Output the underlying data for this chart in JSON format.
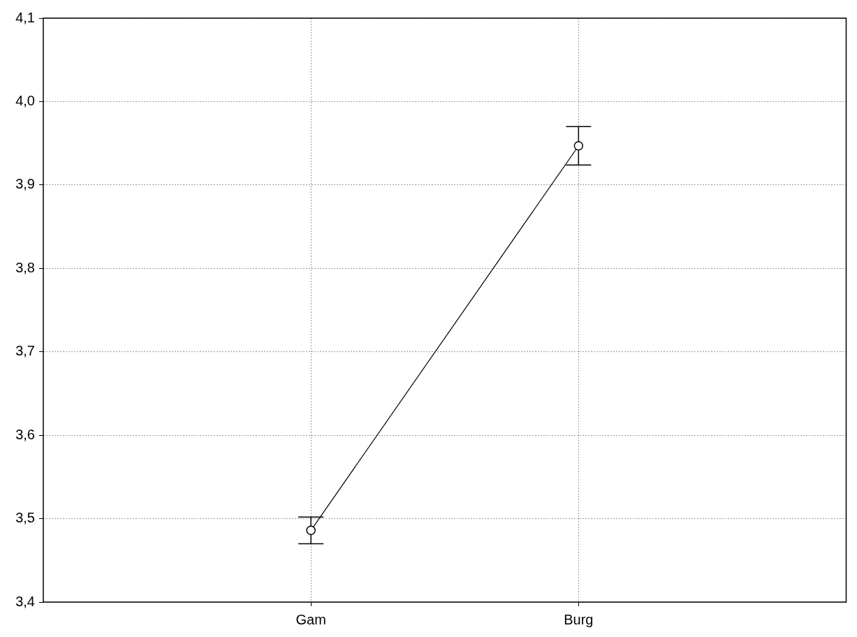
{
  "chart_data": {
    "type": "line",
    "categories": [
      "Gam",
      "Burg"
    ],
    "values": [
      3.486,
      3.947
    ],
    "errors": [
      0.016,
      0.023
    ],
    "color": "#000000",
    "ylim": [
      3.4,
      4.1
    ],
    "yticks": [
      {
        "value": 3.4,
        "label": "3,4"
      },
      {
        "value": 3.5,
        "label": "3,5"
      },
      {
        "value": 3.6,
        "label": "3,6"
      },
      {
        "value": 3.7,
        "label": "3,7"
      },
      {
        "value": 3.8,
        "label": "3,8"
      },
      {
        "value": 3.9,
        "label": "3,9"
      },
      {
        "value": 4.0,
        "label": "4,0"
      },
      {
        "value": 4.1,
        "label": "4,1"
      }
    ],
    "grid": true,
    "marker": "circle",
    "line_style": "solid"
  }
}
